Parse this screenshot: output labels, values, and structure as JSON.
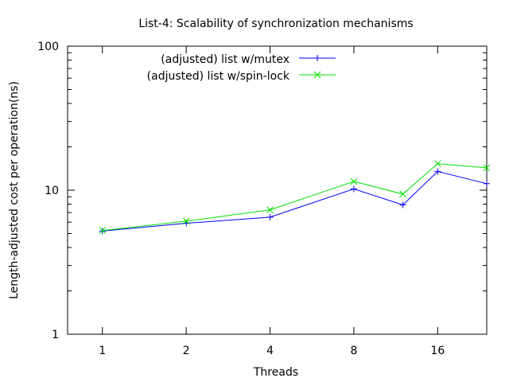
{
  "chart_data": {
    "type": "line",
    "title": "List-4: Scalability of synchronization mechanisms",
    "xlabel": "Threads",
    "ylabel": "Length-adjusted cost per operation(ns)",
    "x_scale": "log2",
    "y_scale": "log10",
    "xlim": [
      0.75,
      24
    ],
    "ylim": [
      1,
      100
    ],
    "x_ticks": [
      "1",
      "2",
      "4",
      "8",
      "16"
    ],
    "y_ticks": [
      "1",
      "10",
      "100"
    ],
    "legend_position": "top-left",
    "series": [
      {
        "name": "(adjusted) list w/mutex",
        "color": "#0000ff",
        "marker": "plus",
        "x": [
          1,
          2,
          4,
          8,
          12,
          16,
          24
        ],
        "y": [
          5.2,
          5.9,
          6.5,
          10.2,
          7.9,
          13.5,
          11.1
        ]
      },
      {
        "name": "(adjusted) list w/spin-lock",
        "color": "#00e000",
        "marker": "cross",
        "x": [
          1,
          2,
          4,
          8,
          12,
          16,
          24
        ],
        "y": [
          5.25,
          6.1,
          7.3,
          11.5,
          9.4,
          15.3,
          14.3
        ]
      }
    ]
  }
}
